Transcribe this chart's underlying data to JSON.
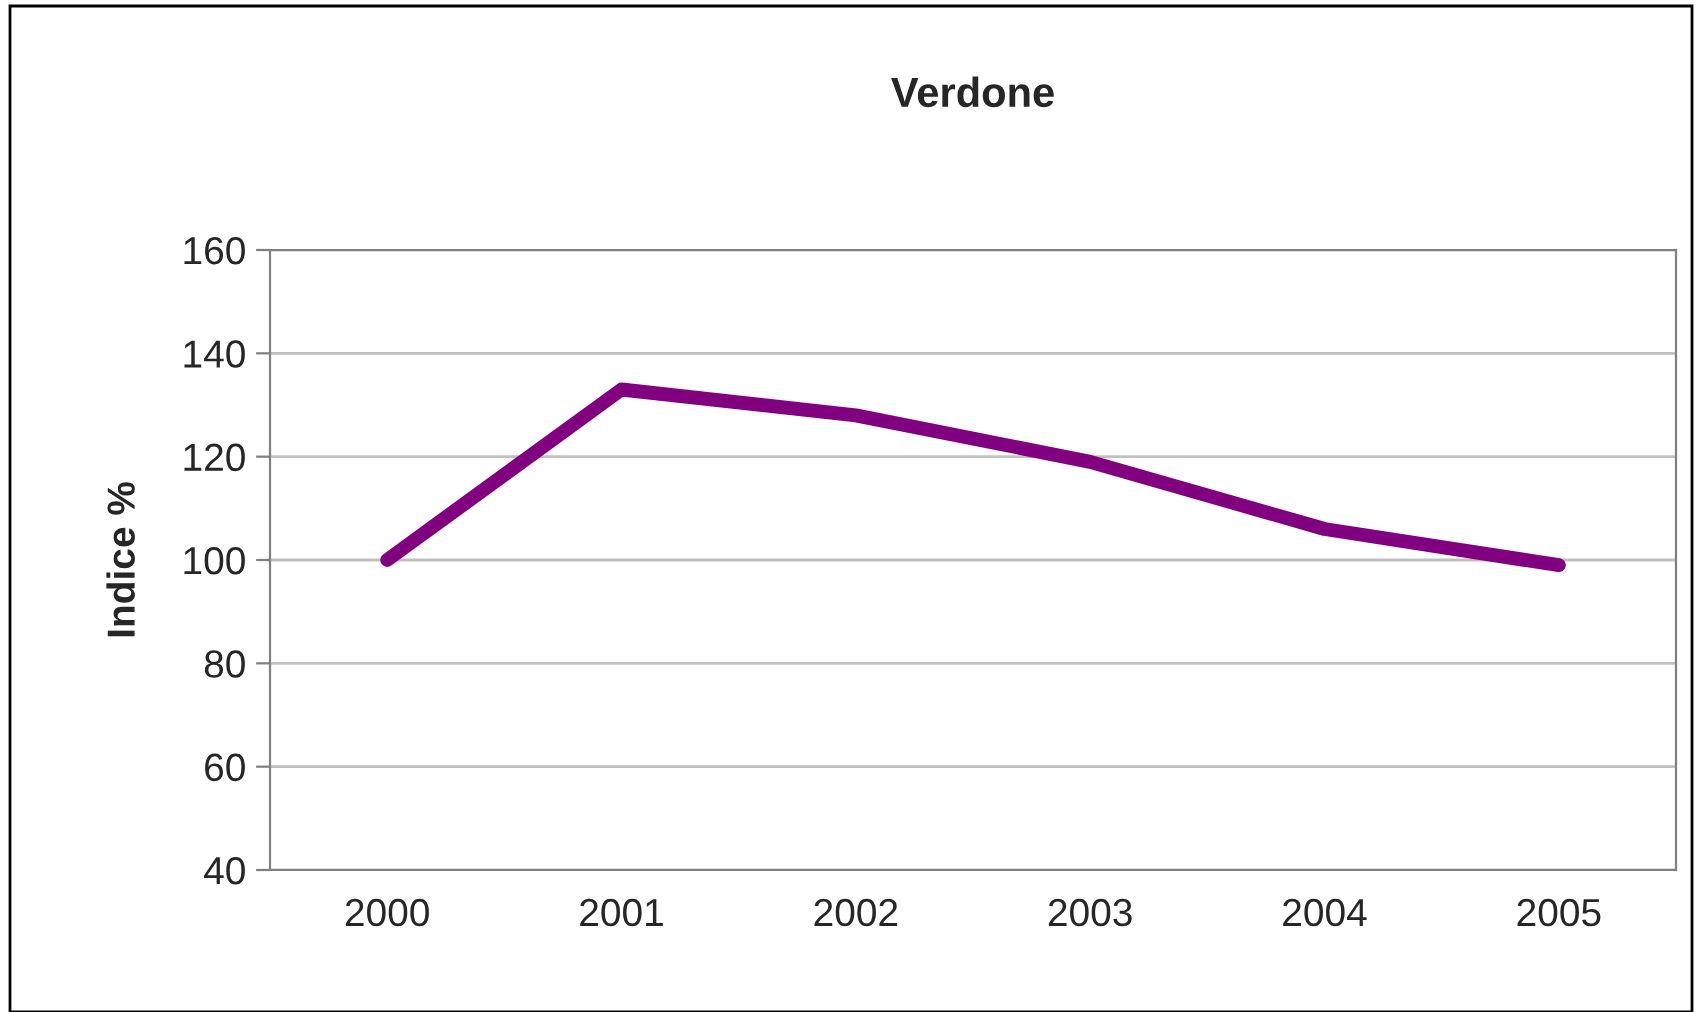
{
  "chart_data": {
    "type": "line",
    "title": "Verdone",
    "ylabel": "Indice %",
    "categories": [
      "2000",
      "2001",
      "2002",
      "2003",
      "2004",
      "2005"
    ],
    "series": [
      {
        "color": "#800080",
        "values": [
          100,
          133,
          128,
          119,
          106,
          99
        ]
      }
    ],
    "ylim": [
      40,
      160
    ],
    "yticks": [
      40,
      60,
      80,
      100,
      120,
      140,
      160
    ],
    "grid": "y",
    "marker": "none",
    "line_style": "solid"
  }
}
